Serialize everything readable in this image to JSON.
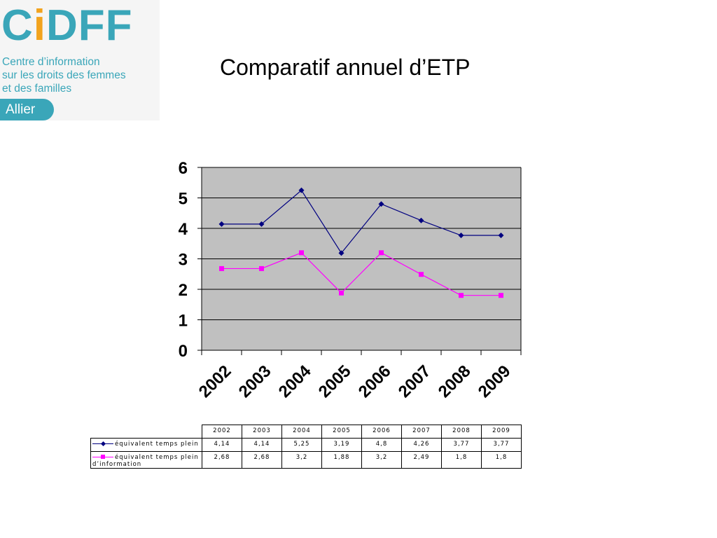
{
  "logo": {
    "mark_a": "C",
    "mark_b": "i",
    "mark_c": "DFF",
    "line1": "Centre d’information",
    "line2": "sur les droits des femmes",
    "line3": "et des familles",
    "badge": "Allier"
  },
  "page_title": "Comparatif annuel d’ETP",
  "colors": {
    "series1": "#000080",
    "series2": "#ff00ff",
    "plot_bg": "#c0c0c0",
    "logo": "#3aa6b9",
    "logo_accent": "#f2a31d"
  },
  "chart_data": {
    "type": "line",
    "title": "",
    "xlabel": "",
    "ylabel": "",
    "categories": [
      "2002",
      "2003",
      "2004",
      "2005",
      "2006",
      "2007",
      "2008",
      "2009"
    ],
    "ylim": [
      0,
      6
    ],
    "yticks": [
      "0",
      "1",
      "2",
      "3",
      "4",
      "5",
      "6"
    ],
    "grid": true,
    "legend": "data-table",
    "series": [
      {
        "name": "équivalent temps plein",
        "values": [
          4.14,
          4.14,
          5.25,
          3.19,
          4.8,
          4.26,
          3.77,
          3.77
        ],
        "labels": [
          "4,14",
          "4,14",
          "5,25",
          "3,19",
          "4,8",
          "4,26",
          "3,77",
          "3,77"
        ],
        "marker": "diamond"
      },
      {
        "name": "équivalent temps plein d’information",
        "values": [
          2.68,
          2.68,
          3.2,
          1.88,
          3.2,
          2.49,
          1.8,
          1.8
        ],
        "labels": [
          "2,68",
          "2,68",
          "3,2",
          "1,88",
          "3,2",
          "2,49",
          "1,8",
          "1,8"
        ],
        "marker": "square"
      }
    ]
  },
  "table": {
    "row1_label": "équivalent temps plein",
    "row2_label_line1": "équivalent temps plein",
    "row2_label_line2": "d’information"
  }
}
